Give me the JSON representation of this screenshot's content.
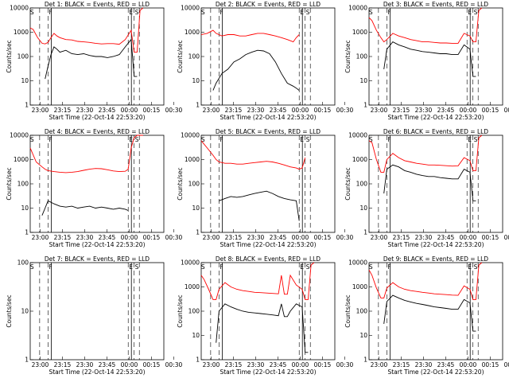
{
  "colors": {
    "events": "#000000",
    "lld": "#ff0000",
    "background": "#ffffff"
  },
  "xticks": [
    "23:00",
    "23:15",
    "23:30",
    "23:45",
    "00:00",
    "00:15",
    "00:30"
  ],
  "yticks": [
    "1",
    "10",
    "100",
    "1000",
    "10000"
  ],
  "ylabel": "Counts/sec",
  "xlabel": "Start Time (22-Oct-14 22:53:20)",
  "chart_data": [
    {
      "type": "line",
      "title": "Det 1: BLACK = Events, RED = LLD",
      "ylim": [
        1,
        10000
      ],
      "yscale": "log",
      "x_minutes_from_start": [
        0,
        2,
        5,
        8,
        10,
        12,
        14,
        16,
        18,
        20,
        24,
        28,
        32,
        36,
        40,
        44,
        48,
        52,
        56,
        60,
        64,
        68,
        70,
        72,
        74,
        76
      ],
      "lld": [
        1500,
        1300,
        600,
        350,
        330,
        380,
        600,
        900,
        700,
        600,
        500,
        480,
        420,
        400,
        380,
        350,
        330,
        340,
        340,
        320,
        500,
        1200,
        150,
        150,
        8000,
        12000
      ],
      "events": [
        null,
        null,
        null,
        null,
        12,
        40,
        120,
        250,
        200,
        150,
        180,
        130,
        120,
        130,
        110,
        100,
        100,
        90,
        100,
        120,
        250,
        500,
        15,
        15,
        null,
        null
      ],
      "markers": {
        "S": 1,
        "F": 12,
        "E": 66,
        "S2": 70
      }
    },
    {
      "type": "line",
      "title": "Det 2: BLACK = Events, RED = LLD",
      "ylim": [
        1,
        10000
      ],
      "yscale": "log",
      "x_minutes_from_start": [
        0,
        4,
        8,
        10,
        14,
        18,
        22,
        26,
        30,
        34,
        38,
        42,
        46,
        50,
        54,
        58,
        62,
        64,
        66
      ],
      "lld": [
        800,
        900,
        1200,
        900,
        700,
        800,
        800,
        700,
        700,
        800,
        900,
        900,
        800,
        700,
        600,
        500,
        400,
        600,
        800
      ],
      "events": [
        null,
        null,
        4,
        8,
        20,
        30,
        60,
        80,
        120,
        150,
        180,
        170,
        130,
        60,
        20,
        8,
        6,
        5,
        4
      ],
      "markers": {
        "S": 1,
        "F": 12,
        "E": 66,
        "S2": 70
      }
    },
    {
      "type": "line",
      "title": "Det 3: BLACK = Events, RED = LLD",
      "ylim": [
        1,
        10000
      ],
      "yscale": "log",
      "x_minutes_from_start": [
        0,
        2,
        5,
        8,
        10,
        12,
        16,
        20,
        24,
        28,
        32,
        36,
        40,
        44,
        48,
        52,
        56,
        60,
        64,
        68,
        70,
        72,
        74,
        76
      ],
      "lld": [
        4000,
        3000,
        1200,
        600,
        400,
        500,
        900,
        700,
        600,
        500,
        450,
        400,
        400,
        380,
        360,
        360,
        350,
        350,
        900,
        700,
        400,
        400,
        8000,
        12000
      ],
      "events": [
        null,
        null,
        null,
        null,
        30,
        200,
        400,
        300,
        250,
        200,
        180,
        160,
        150,
        140,
        130,
        130,
        120,
        120,
        300,
        200,
        15,
        15,
        null,
        null
      ],
      "markers": {
        "S": 1,
        "F": 12,
        "E": 66,
        "S2": 70
      }
    },
    {
      "type": "line",
      "title": "Det 4: BLACK = Events, RED = LLD",
      "ylim": [
        1,
        10000
      ],
      "yscale": "log",
      "x_minutes_from_start": [
        0,
        4,
        8,
        10,
        12,
        16,
        20,
        24,
        28,
        32,
        36,
        40,
        44,
        48,
        52,
        56,
        60,
        64,
        66,
        68,
        70,
        72,
        76
      ],
      "lld": [
        3000,
        800,
        500,
        400,
        350,
        320,
        300,
        290,
        300,
        320,
        360,
        400,
        430,
        420,
        380,
        340,
        320,
        330,
        400,
        3000,
        8000,
        10000,
        12000
      ],
      "events": [
        null,
        null,
        5,
        10,
        20,
        15,
        12,
        11,
        12,
        10,
        11,
        12,
        10,
        11,
        10,
        9,
        10,
        9,
        8,
        null,
        null,
        null,
        null
      ],
      "markers": {
        "S": 1,
        "F": 12,
        "E": 66,
        "S2": 70
      }
    },
    {
      "type": "line",
      "title": "Det 5: BLACK = Events, RED = LLD",
      "ylim": [
        1,
        10000
      ],
      "yscale": "log",
      "x_minutes_from_start": [
        0,
        4,
        8,
        10,
        12,
        16,
        20,
        24,
        28,
        32,
        36,
        40,
        44,
        48,
        52,
        56,
        60,
        64,
        66,
        68,
        70
      ],
      "lld": [
        6000,
        3000,
        1500,
        1000,
        800,
        700,
        700,
        650,
        650,
        700,
        750,
        800,
        850,
        800,
        700,
        600,
        500,
        450,
        400,
        450,
        1200
      ],
      "events": [
        null,
        null,
        null,
        null,
        20,
        25,
        30,
        28,
        30,
        35,
        40,
        45,
        50,
        40,
        30,
        25,
        22,
        20,
        3,
        null,
        null
      ],
      "markers": {
        "S": 1,
        "F": 12,
        "E": 66,
        "S2": 70
      }
    },
    {
      "type": "line",
      "title": "Det 6: BLACK = Events, RED = LLD",
      "ylim": [
        1,
        10000
      ],
      "yscale": "log",
      "x_minutes_from_start": [
        0,
        2,
        5,
        8,
        10,
        12,
        16,
        20,
        24,
        28,
        32,
        36,
        40,
        44,
        48,
        52,
        56,
        60,
        64,
        68,
        70,
        72,
        74,
        76
      ],
      "lld": [
        6000,
        5000,
        1000,
        300,
        300,
        1000,
        1800,
        1200,
        900,
        800,
        700,
        650,
        600,
        600,
        580,
        560,
        540,
        550,
        1200,
        900,
        350,
        350,
        8000,
        12000
      ],
      "events": [
        null,
        null,
        null,
        null,
        40,
        400,
        600,
        500,
        350,
        300,
        250,
        220,
        200,
        200,
        180,
        170,
        160,
        160,
        400,
        300,
        20,
        20,
        null,
        null
      ],
      "markers": {
        "S": 1,
        "F": 12,
        "E": 66,
        "S2": 70
      }
    },
    {
      "type": "line",
      "title": "Det 7: BLACK = Events, RED = LLD",
      "ylim": [
        1,
        100
      ],
      "yscale": "log",
      "x_minutes_from_start": [],
      "lld": [],
      "events": [],
      "markers": {
        "S": 1,
        "F": 12,
        "E": 66,
        "S2": 70
      }
    },
    {
      "type": "line",
      "title": "Det 8: BLACK = Events, RED = LLD",
      "ylim": [
        1,
        10000
      ],
      "yscale": "log",
      "x_minutes_from_start": [
        0,
        2,
        5,
        8,
        10,
        12,
        16,
        20,
        24,
        28,
        32,
        36,
        40,
        44,
        48,
        52,
        54,
        56,
        58,
        60,
        64,
        68,
        70,
        72,
        74,
        76
      ],
      "lld": [
        3000,
        2000,
        800,
        300,
        300,
        800,
        1500,
        1000,
        800,
        700,
        650,
        600,
        580,
        560,
        540,
        520,
        3000,
        500,
        500,
        3000,
        1200,
        800,
        300,
        300,
        8000,
        12000
      ],
      "events": [
        null,
        null,
        null,
        null,
        5,
        100,
        200,
        150,
        120,
        100,
        90,
        85,
        80,
        75,
        70,
        65,
        200,
        60,
        60,
        100,
        200,
        150,
        2,
        2,
        null,
        null
      ],
      "markers": {
        "S": 1,
        "F": 12,
        "E": 66,
        "S2": 70
      }
    },
    {
      "type": "line",
      "title": "Det 9: BLACK = Events, RED = LLD",
      "ylim": [
        1,
        10000
      ],
      "yscale": "log",
      "x_minutes_from_start": [
        0,
        2,
        5,
        8,
        10,
        12,
        16,
        20,
        24,
        28,
        32,
        36,
        40,
        44,
        48,
        52,
        56,
        60,
        64,
        68,
        70,
        72,
        74,
        76
      ],
      "lld": [
        5000,
        3000,
        900,
        350,
        350,
        900,
        1500,
        1000,
        800,
        700,
        650,
        600,
        560,
        520,
        500,
        480,
        460,
        450,
        1100,
        800,
        300,
        300,
        8000,
        12000
      ],
      "events": [
        null,
        null,
        null,
        null,
        30,
        250,
        450,
        350,
        280,
        240,
        210,
        190,
        170,
        150,
        140,
        130,
        120,
        120,
        300,
        220,
        15,
        15,
        null,
        null
      ],
      "markers": {
        "S": 1,
        "F": 12,
        "E": 66,
        "S2": 70
      }
    }
  ]
}
